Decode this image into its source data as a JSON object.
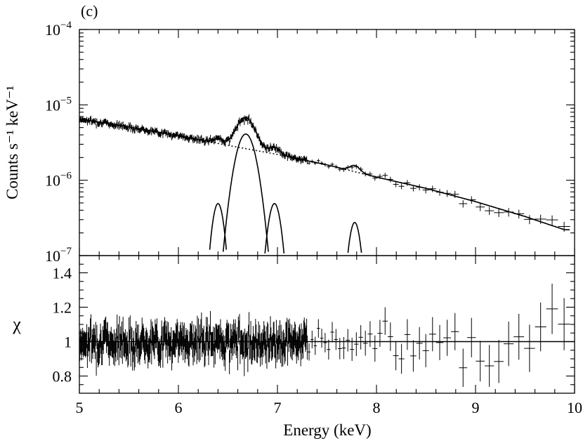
{
  "chart_data": {
    "type": "line",
    "panel_label": "(c)",
    "xlabel": "Energy (keV)",
    "xlim": [
      5,
      10
    ],
    "xticks": [
      "5",
      "6",
      "7",
      "8",
      "9",
      "10"
    ],
    "top_panel": {
      "ylabel": "Counts s⁻¹ keV⁻¹",
      "yscale": "log",
      "ylim": [
        1e-07,
        0.0001
      ],
      "yticks": [
        {
          "base": "10",
          "exp": "−4",
          "value": 0.0001
        },
        {
          "base": "10",
          "exp": "−5",
          "value": 1e-05
        },
        {
          "base": "10",
          "exp": "−6",
          "value": 1e-06
        },
        {
          "base": "10",
          "exp": "−7",
          "value": 1e-07
        }
      ],
      "continuum": {
        "x": [
          5.0,
          5.5,
          6.0,
          6.5,
          7.0,
          7.5,
          8.0,
          8.5,
          9.0,
          9.5,
          9.9
        ],
        "y": [
          6.5e-06,
          5.1e-06,
          3.9e-06,
          2.9e-06,
          2.2e-06,
          1.6e-06,
          1.1e-06,
          7.8e-07,
          5.2e-07,
          3.3e-07,
          2.2e-07
        ]
      },
      "lines": [
        {
          "center": 6.4,
          "amplitude": 4.9e-07,
          "sigma": 0.05
        },
        {
          "center": 6.68,
          "amplitude": 4.1e-06,
          "sigma": 0.085
        },
        {
          "center": 6.97,
          "amplitude": 4.9e-07,
          "sigma": 0.055
        },
        {
          "center": 7.78,
          "amplitude": 2.75e-07,
          "sigma": 0.05
        }
      ]
    },
    "bottom_panel": {
      "ylabel": "χ",
      "ylim": [
        0.7,
        1.5
      ],
      "yticks": [
        "0.8",
        "1",
        "1.2",
        "1.4"
      ],
      "model_line": 1.0
    }
  }
}
